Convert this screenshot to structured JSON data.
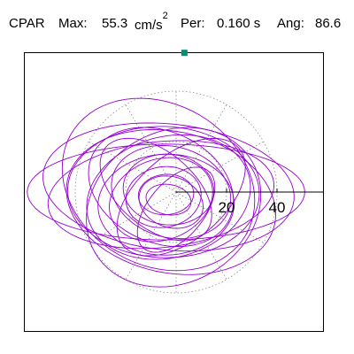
{
  "header": {
    "station": "CPAR",
    "max_label": "Max:",
    "max_value": "55.3",
    "max_unit": "cm/s",
    "max_unit_exp": "2",
    "per_label": "Per:",
    "per_value": "0.160 s",
    "ang_label": "Ang:",
    "ang_value": "86.6"
  },
  "colors": {
    "trace": "#9400d3",
    "marker": "#009070",
    "grid": "#8c8c8c",
    "axis": "#000000"
  },
  "chart_data": {
    "type": "polar-orbit",
    "radial_ticks": [
      {
        "value": 20,
        "label": "20"
      },
      {
        "value": 40,
        "label": "40"
      }
    ],
    "grid_rings": [
      20,
      40
    ],
    "grid_spokes_deg": [
      30,
      60,
      90,
      120,
      150,
      210,
      240,
      270,
      300,
      330
    ],
    "axis_angle_deg": 0,
    "r_max_shown": 60,
    "peak": {
      "value": 55.3,
      "angle_deg": 86.6
    },
    "orbits": [
      {
        "a": 6,
        "b": 9,
        "rot": 80,
        "cx": -3,
        "cy": -3
      },
      {
        "a": 8,
        "b": 11,
        "rot": 95,
        "cx": -4,
        "cy": -1
      },
      {
        "a": 10,
        "b": 13,
        "rot": 70,
        "cx": -2,
        "cy": -4
      },
      {
        "a": 12,
        "b": 15,
        "rot": 100,
        "cx": -5,
        "cy": -2
      },
      {
        "a": 14,
        "b": 18,
        "rot": 85,
        "cx": -3,
        "cy": 1
      },
      {
        "a": 16,
        "b": 21,
        "rot": 110,
        "cx": -6,
        "cy": -3
      },
      {
        "a": 18,
        "b": 24,
        "rot": 75,
        "cx": -2,
        "cy": 0
      },
      {
        "a": 20,
        "b": 27,
        "rot": 92,
        "cx": -4,
        "cy": -5
      },
      {
        "a": 22,
        "b": 30,
        "rot": 65,
        "cx": -6,
        "cy": 2
      },
      {
        "a": 24,
        "b": 33,
        "rot": 105,
        "cx": -3,
        "cy": -2
      },
      {
        "a": 26,
        "b": 38,
        "rot": 88,
        "cx": -5,
        "cy": 0
      },
      {
        "a": 28,
        "b": 42,
        "rot": 78,
        "cx": -2,
        "cy": -4
      },
      {
        "a": 21,
        "b": 45,
        "rot": 96,
        "cx": -6,
        "cy": -1
      },
      {
        "a": 25,
        "b": 50,
        "rot": 84,
        "cx": -3,
        "cy": 2
      },
      {
        "a": 19,
        "b": 55,
        "rot": 90,
        "cx": -4,
        "cy": 0
      },
      {
        "a": 30,
        "b": 36,
        "rot": 120,
        "cx": -1,
        "cy": -6
      },
      {
        "a": 32,
        "b": 40,
        "rot": 60,
        "cx": -7,
        "cy": 3
      },
      {
        "a": 17,
        "b": 30,
        "rot": 130,
        "cx": 2,
        "cy": -2
      },
      {
        "a": 15,
        "b": 26,
        "rot": 50,
        "cx": -8,
        "cy": 1
      },
      {
        "a": 11,
        "b": 20,
        "rot": 140,
        "cx": 0,
        "cy": -7
      }
    ]
  }
}
